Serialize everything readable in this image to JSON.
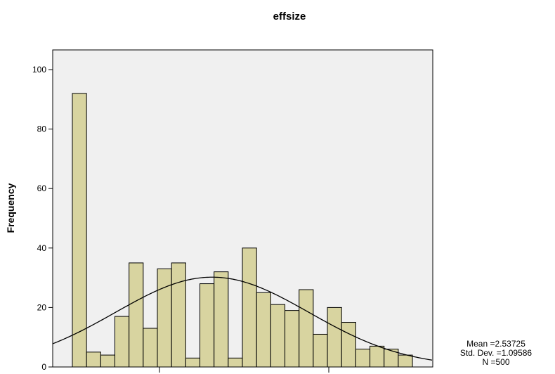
{
  "chart_data": {
    "type": "bar",
    "title": "effsize",
    "xlabel": "",
    "ylabel": "Frequency",
    "ylim": [
      0,
      105
    ],
    "yticks": [
      0,
      20,
      40,
      60,
      80,
      100
    ],
    "values": [
      92,
      5,
      4,
      17,
      35,
      13,
      33,
      35,
      3,
      28,
      32,
      3,
      40,
      25,
      21,
      19,
      26,
      11,
      20,
      15,
      6,
      7,
      6,
      4
    ],
    "normal_curve": {
      "mean": 2.53725,
      "sd": 1.09586,
      "n": 500
    },
    "grid": false,
    "bar_color": "#d8d4a0",
    "plot_background": "#f0f0f0",
    "stats": {
      "mean_label": "Mean =2.53725",
      "sd_label": "Std. Dev. =1.09586",
      "n_label": "N =500"
    }
  }
}
